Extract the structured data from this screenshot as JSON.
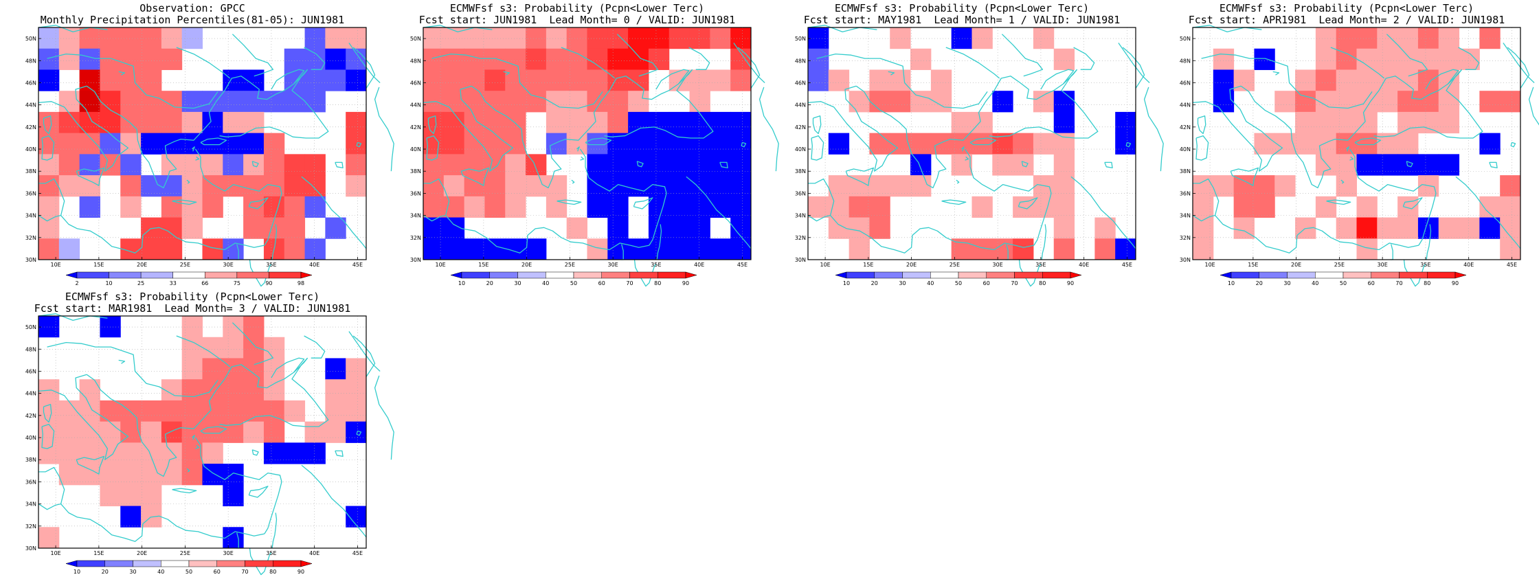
{
  "panels": [
    {
      "title1": "Observation: GPCC",
      "title2": "Monthly Precipitation Percentiles(81-05): JUN1981",
      "colorbar": {
        "labels": [
          "2",
          "10",
          "25",
          "33",
          "66",
          "75",
          "90",
          "98"
        ],
        "colors": [
          "#0000ff",
          "#4a4aff",
          "#8888ff",
          "#b4b4ff",
          "#ffffff",
          "#ffa8a8",
          "#ff7070",
          "#ff3a3a",
          "#ff0000"
        ]
      },
      "grid": [
        [
          "a",
          "b",
          "c",
          "c",
          "c",
          "c",
          "b",
          "a",
          "W",
          "W",
          "W",
          "W",
          "W",
          "A",
          "b",
          "b"
        ],
        [
          "A",
          "b",
          "A",
          "c",
          "c",
          "c",
          "c",
          "W",
          "W",
          "W",
          "W",
          "W",
          "A",
          "A",
          "B",
          "A"
        ],
        [
          "B",
          "W",
          "C",
          "c",
          "c",
          "c",
          "W",
          "W",
          "W",
          "B",
          "B",
          "W",
          "A",
          "A",
          "A",
          "B"
        ],
        [
          "W",
          "b",
          "E",
          "D",
          "c",
          "c",
          "c",
          "A",
          "A",
          "A",
          "A",
          "A",
          "A",
          "A",
          "W",
          "W"
        ],
        [
          "c",
          "d",
          "D",
          "D",
          "c",
          "c",
          "c",
          "b",
          "B",
          "b",
          "b",
          "W",
          "W",
          "W",
          "W",
          "d"
        ],
        [
          "c",
          "c",
          "c",
          "A",
          "b",
          "B",
          "B",
          "B",
          "B",
          "B",
          "B",
          "c",
          "W",
          "W",
          "W",
          "d"
        ],
        [
          "b",
          "c",
          "A",
          "c",
          "A",
          "W",
          "b",
          "b",
          "b",
          "A",
          "b",
          "c",
          "d",
          "d",
          "W",
          "c"
        ],
        [
          "c",
          "b",
          "b",
          "W",
          "c",
          "A",
          "A",
          "b",
          "c",
          "c",
          "c",
          "c",
          "d",
          "d",
          "W",
          "b"
        ],
        [
          "b",
          "W",
          "A",
          "W",
          "b",
          "W",
          "c",
          "b",
          "c",
          "W",
          "c",
          "d",
          "c",
          "A",
          "W",
          "W"
        ],
        [
          "b",
          "W",
          "W",
          "W",
          "W",
          "d",
          "d",
          "b",
          "W",
          "W",
          "c",
          "c",
          "c",
          "W",
          "A",
          "W"
        ],
        [
          "c",
          "a",
          "W",
          "W",
          "d",
          "d",
          "d",
          "W",
          "d",
          "A",
          "W",
          "d",
          "c",
          "A",
          "W",
          "W"
        ]
      ]
    },
    {
      "title1": "ECMWFsf s3: Probability (Pcpn<Lower Terc)",
      "title2": "Fcst start: JUN1981  Lead Month= 0 / VALID: JUN1981",
      "colorbar": {
        "labels": [
          "10",
          "20",
          "30",
          "40",
          "50",
          "60",
          "70",
          "80",
          "90"
        ],
        "colors": [
          "#0000ff",
          "#4040ff",
          "#8080ff",
          "#c0c0ff",
          "#ffffff",
          "#ffc0c0",
          "#ff8080",
          "#ff4040",
          "#ff2020",
          "#ff0000"
        ]
      },
      "grid": [
        [
          "b",
          "b",
          "b",
          "b",
          "b",
          "c",
          "b",
          "c",
          "d",
          "d",
          "e",
          "e",
          "d",
          "d",
          "c",
          "e"
        ],
        [
          "c",
          "c",
          "c",
          "c",
          "c",
          "d",
          "c",
          "c",
          "d",
          "e",
          "e",
          "d",
          "W",
          "W",
          "W",
          "d"
        ],
        [
          "c",
          "c",
          "c",
          "d",
          "c",
          "c",
          "c",
          "c",
          "c",
          "d",
          "d",
          "W",
          "b",
          "b",
          "b",
          "c"
        ],
        [
          "c",
          "c",
          "c",
          "c",
          "c",
          "c",
          "b",
          "b",
          "c",
          "c",
          "b",
          "W",
          "W",
          "b",
          "W",
          "W"
        ],
        [
          "d",
          "d",
          "c",
          "c",
          "c",
          "W",
          "b",
          "b",
          "b",
          "c",
          "B",
          "B",
          "B",
          "B",
          "B",
          "B"
        ],
        [
          "d",
          "d",
          "c",
          "c",
          "c",
          "W",
          "A",
          "b",
          "A",
          "B",
          "B",
          "B",
          "B",
          "B",
          "B",
          "B"
        ],
        [
          "c",
          "c",
          "c",
          "c",
          "b",
          "d",
          "W",
          "W",
          "B",
          "B",
          "B",
          "B",
          "B",
          "B",
          "B",
          "B"
        ],
        [
          "c",
          "b",
          "c",
          "c",
          "b",
          "b",
          "b",
          "W",
          "B",
          "B",
          "B",
          "B",
          "B",
          "B",
          "B",
          "B"
        ],
        [
          "c",
          "c",
          "b",
          "c",
          "b",
          "W",
          "b",
          "W",
          "B",
          "B",
          "W",
          "B",
          "B",
          "B",
          "B",
          "B"
        ],
        [
          "B",
          "B",
          "W",
          "W",
          "W",
          "W",
          "W",
          "b",
          "W",
          "B",
          "W",
          "B",
          "B",
          "B",
          "W",
          "B"
        ],
        [
          "B",
          "B",
          "B",
          "B",
          "B",
          "B",
          "W",
          "W",
          "b",
          "B",
          "B",
          "B",
          "B",
          "B",
          "B",
          "B"
        ]
      ]
    },
    {
      "title1": "ECMWFsf s3: Probability (Pcpn<Lower Terc)",
      "title2": "Fcst start: MAY1981  Lead Month= 1 / VALID: JUN1981",
      "colorbar": {
        "labels": [
          "10",
          "20",
          "30",
          "40",
          "50",
          "60",
          "70",
          "80",
          "90"
        ],
        "colors": [
          "#0000ff",
          "#4040ff",
          "#8080ff",
          "#c0c0ff",
          "#ffffff",
          "#ffc0c0",
          "#ff8080",
          "#ff4040",
          "#ff2020",
          "#ff0000"
        ]
      },
      "grid": [
        [
          "B",
          "W",
          "W",
          "W",
          "b",
          "W",
          "W",
          "B",
          "b",
          "W",
          "W",
          "b",
          "W",
          "W",
          "W",
          "W"
        ],
        [
          "A",
          "W",
          "W",
          "W",
          "W",
          "b",
          "W",
          "W",
          "W",
          "W",
          "W",
          "W",
          "b",
          "W",
          "W",
          "W"
        ],
        [
          "A",
          "b",
          "W",
          "b",
          "b",
          "W",
          "b",
          "W",
          "W",
          "W",
          "W",
          "W",
          "W",
          "W",
          "W",
          "W"
        ],
        [
          "W",
          "W",
          "b",
          "c",
          "c",
          "b",
          "b",
          "W",
          "W",
          "B",
          "W",
          "b",
          "B",
          "W",
          "W",
          "W"
        ],
        [
          "W",
          "W",
          "W",
          "W",
          "W",
          "W",
          "W",
          "b",
          "b",
          "W",
          "W",
          "W",
          "B",
          "W",
          "W",
          "B"
        ],
        [
          "W",
          "B",
          "W",
          "c",
          "c",
          "c",
          "c",
          "c",
          "c",
          "d",
          "c",
          "b",
          "b",
          "W",
          "W",
          "B"
        ],
        [
          "W",
          "W",
          "W",
          "W",
          "W",
          "B",
          "W",
          "b",
          "W",
          "b",
          "b",
          "W",
          "b",
          "W",
          "W",
          "W"
        ],
        [
          "W",
          "b",
          "b",
          "b",
          "b",
          "b",
          "W",
          "W",
          "W",
          "W",
          "W",
          "b",
          "b",
          "W",
          "W",
          "W"
        ],
        [
          "b",
          "b",
          "c",
          "c",
          "W",
          "W",
          "W",
          "W",
          "b",
          "W",
          "b",
          "b",
          "b",
          "W",
          "W",
          "W"
        ],
        [
          "W",
          "b",
          "b",
          "c",
          "W",
          "W",
          "W",
          "W",
          "W",
          "W",
          "W",
          "W",
          "b",
          "W",
          "b",
          "W"
        ],
        [
          "W",
          "W",
          "b",
          "W",
          "W",
          "W",
          "W",
          "c",
          "c",
          "c",
          "d",
          "W",
          "c",
          "W",
          "c",
          "B"
        ]
      ]
    },
    {
      "title1": "ECMWFsf s3: Probability (Pcpn<Lower Terc)",
      "title2": "Fcst start: APR1981  Lead Month= 2 / VALID: JUN1981",
      "colorbar": {
        "labels": [
          "10",
          "20",
          "30",
          "40",
          "50",
          "60",
          "70",
          "80",
          "90"
        ],
        "colors": [
          "#0000ff",
          "#4040ff",
          "#8080ff",
          "#c0c0ff",
          "#ffffff",
          "#ffc0c0",
          "#ff8080",
          "#ff4040",
          "#ff2020",
          "#ff0000"
        ]
      },
      "grid": [
        [
          "W",
          "W",
          "W",
          "W",
          "W",
          "W",
          "b",
          "c",
          "c",
          "b",
          "b",
          "c",
          "b",
          "W",
          "c",
          "W"
        ],
        [
          "W",
          "b",
          "W",
          "B",
          "W",
          "W",
          "b",
          "c",
          "b",
          "b",
          "b",
          "b",
          "b",
          "b",
          "W",
          "W"
        ],
        [
          "W",
          "B",
          "b",
          "W",
          "W",
          "b",
          "c",
          "b",
          "b",
          "b",
          "b",
          "c",
          "b",
          "W",
          "W",
          "W"
        ],
        [
          "W",
          "B",
          "W",
          "W",
          "b",
          "c",
          "b",
          "b",
          "b",
          "b",
          "c",
          "c",
          "b",
          "W",
          "c",
          "c"
        ],
        [
          "W",
          "W",
          "W",
          "W",
          "W",
          "b",
          "b",
          "b",
          "b",
          "W",
          "b",
          "b",
          "b",
          "W",
          "W",
          "W"
        ],
        [
          "W",
          "W",
          "W",
          "b",
          "b",
          "b",
          "b",
          "c",
          "c",
          "b",
          "b",
          "W",
          "W",
          "W",
          "B",
          "W"
        ],
        [
          "W",
          "W",
          "W",
          "W",
          "W",
          "W",
          "b",
          "b",
          "B",
          "B",
          "B",
          "B",
          "B",
          "W",
          "W",
          "W"
        ],
        [
          "b",
          "b",
          "c",
          "c",
          "b",
          "W",
          "W",
          "b",
          "W",
          "W",
          "W",
          "b",
          "W",
          "W",
          "W",
          "c"
        ],
        [
          "b",
          "W",
          "c",
          "c",
          "W",
          "W",
          "b",
          "W",
          "b",
          "W",
          "b",
          "W",
          "W",
          "W",
          "b",
          "b"
        ],
        [
          "b",
          "W",
          "b",
          "W",
          "W",
          "b",
          "W",
          "b",
          "e",
          "b",
          "b",
          "B",
          "b",
          "b",
          "B",
          "b"
        ],
        [
          "b",
          "W",
          "W",
          "W",
          "W",
          "W",
          "W",
          "W",
          "b",
          "W",
          "W",
          "W",
          "W",
          "W",
          "W",
          "b"
        ]
      ]
    },
    {
      "title1": "ECMWFsf s3: Probability (Pcpn<Lower Terc)",
      "title2": "Fcst start: MAR1981  Lead Month= 3 / VALID: JUN1981",
      "colorbar": {
        "labels": [
          "10",
          "20",
          "30",
          "40",
          "50",
          "60",
          "70",
          "80",
          "90"
        ],
        "colors": [
          "#0000ff",
          "#4040ff",
          "#8080ff",
          "#c0c0ff",
          "#ffffff",
          "#ffc0c0",
          "#ff8080",
          "#ff4040",
          "#ff2020",
          "#ff0000"
        ]
      },
      "grid": [
        [
          "B",
          "W",
          "W",
          "B",
          "W",
          "W",
          "W",
          "b",
          "W",
          "b",
          "c",
          "W",
          "W",
          "W",
          "W",
          "W"
        ],
        [
          "W",
          "W",
          "W",
          "W",
          "W",
          "W",
          "W",
          "b",
          "b",
          "b",
          "c",
          "b",
          "W",
          "W",
          "W",
          "W"
        ],
        [
          "W",
          "W",
          "W",
          "W",
          "W",
          "W",
          "W",
          "b",
          "c",
          "c",
          "c",
          "b",
          "W",
          "W",
          "B",
          "b"
        ],
        [
          "b",
          "W",
          "b",
          "W",
          "W",
          "W",
          "b",
          "c",
          "c",
          "c",
          "c",
          "b",
          "W",
          "W",
          "b",
          "b"
        ],
        [
          "b",
          "b",
          "b",
          "c",
          "c",
          "c",
          "c",
          "c",
          "c",
          "c",
          "c",
          "c",
          "b",
          "W",
          "b",
          "b"
        ],
        [
          "b",
          "b",
          "b",
          "b",
          "c",
          "b",
          "d",
          "c",
          "c",
          "c",
          "b",
          "c",
          "W",
          "b",
          "b",
          "B"
        ],
        [
          "b",
          "b",
          "b",
          "b",
          "b",
          "b",
          "b",
          "c",
          "b",
          "W",
          "W",
          "B",
          "B",
          "B",
          "W",
          "W"
        ],
        [
          "W",
          "b",
          "b",
          "b",
          "b",
          "b",
          "b",
          "c",
          "B",
          "B",
          "W",
          "W",
          "W",
          "W",
          "W",
          "W"
        ],
        [
          "W",
          "W",
          "W",
          "b",
          "b",
          "b",
          "W",
          "W",
          "W",
          "B",
          "W",
          "W",
          "W",
          "W",
          "W",
          "W"
        ],
        [
          "W",
          "W",
          "W",
          "W",
          "B",
          "b",
          "W",
          "W",
          "W",
          "W",
          "W",
          "W",
          "W",
          "W",
          "W",
          "B"
        ],
        [
          "b",
          "W",
          "W",
          "W",
          "W",
          "W",
          "W",
          "W",
          "W",
          "B",
          "W",
          "W",
          "W",
          "W",
          "W",
          "W"
        ]
      ]
    }
  ],
  "color_classes": {
    "B": "#0000ff",
    "A": "#5a5aff",
    "W": "#ffffff",
    "a": "#b0b0ff",
    "b": "#ffaaaa",
    "c": "#ff6e6e",
    "d": "#ff4545",
    "e": "#ff1010",
    "C": "#e00000",
    "D": "#ff3030",
    "E": "#d80000"
  },
  "axes": {
    "lon_labels": [
      "10E",
      "15E",
      "20E",
      "25E",
      "30E",
      "35E",
      "40E",
      "45E"
    ],
    "lat_labels": [
      "50N",
      "48N",
      "46N",
      "44N",
      "42N",
      "40N",
      "38N",
      "36N",
      "34N",
      "32N",
      "30N"
    ]
  },
  "coastline_color": "#33cccc"
}
